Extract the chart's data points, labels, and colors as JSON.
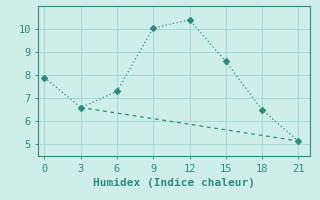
{
  "xlabel": "Humidex (Indice chaleur)",
  "line1_x": [
    0,
    3,
    6,
    9,
    12,
    15,
    18,
    21
  ],
  "line1_y": [
    7.9,
    6.6,
    7.3,
    10.05,
    10.4,
    8.6,
    6.5,
    5.15
  ],
  "line2_x": [
    3,
    21
  ],
  "line2_y": [
    6.6,
    5.15
  ],
  "line_color": "#2d8b7a",
  "bg_color": "#ceeee8",
  "plot_bg_color": "#ceeee8",
  "grid_color": "#a8d8d0",
  "tick_color": "#2d8b7a",
  "spine_color": "#2d8b7a",
  "xlim": [
    -0.5,
    22
  ],
  "ylim": [
    4.5,
    11.0
  ],
  "xticks": [
    0,
    3,
    6,
    9,
    12,
    15,
    18,
    21
  ],
  "yticks": [
    5,
    6,
    7,
    8,
    9,
    10
  ],
  "fontsize": 7.5,
  "marker": "D",
  "markersize": 3.0
}
